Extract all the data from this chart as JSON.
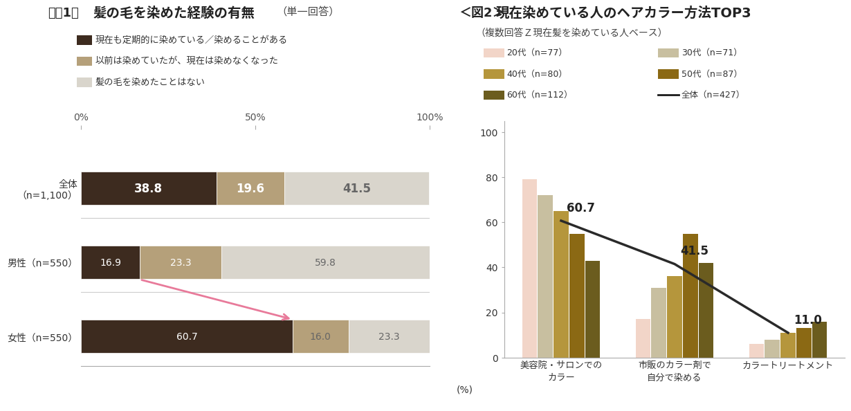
{
  "fig1": {
    "title1": "＜図1＞",
    "title2": "髪の毛を染めた経験の有無",
    "title_sub": "（単一回答）",
    "legend_labels": [
      "現在も定期的に染めている／染めることがある",
      "以前は染めていたが、現在は染めなくなった",
      "髪の毛を染めたことはない"
    ],
    "legend_colors": [
      "#3d2b1f",
      "#b5a07a",
      "#d9d5cc"
    ],
    "categories": [
      "全体\n（n=1,100）",
      "男性（n=550）",
      "女性（n=550）"
    ],
    "values": [
      [
        38.8,
        19.6,
        41.5
      ],
      [
        16.9,
        23.3,
        59.8
      ],
      [
        60.7,
        16.0,
        23.3
      ]
    ],
    "bar_colors": [
      "#3d2b1f",
      "#b5a07a",
      "#d9d5cc"
    ],
    "bar_text_colors": [
      "#ffffff",
      "#ffffff",
      "#555555"
    ],
    "value_colors_row": [
      [
        "#ffffff",
        "#ffffff",
        "#666666"
      ],
      [
        "#ffffff",
        "#ffffff",
        "#666666"
      ],
      [
        "#ffffff",
        "#666666",
        "#666666"
      ]
    ]
  },
  "fig2": {
    "title1": "＜図2＞",
    "title2": "現在染めている人のヘアカラー方法TOP3",
    "title_sub": "（複数回答Ｚ現在髪を染めている人ベース）",
    "categories": [
      "美容院・サロンでの\nカラー",
      "市販のカラー剤で\n自分で染める",
      "カラートリートメント"
    ],
    "legend_labels": [
      "20代（n=77）",
      "30代（n=71）",
      "40代（n=80）",
      "50代（n=87）",
      "60代（n=112）",
      "全体（n=427）"
    ],
    "legend_colors": [
      "#f2d5c8",
      "#c8bfa0",
      "#b5963c",
      "#8b6914",
      "#6b5c1e",
      "#1a1a1a"
    ],
    "bar_data": {
      "20dai": [
        79,
        17,
        6
      ],
      "30dai": [
        72,
        31,
        8
      ],
      "40dai": [
        65,
        36,
        11
      ],
      "50dai": [
        55,
        55,
        13
      ],
      "60dai": [
        43,
        42,
        16
      ]
    },
    "line_data": [
      60.7,
      41.5,
      11.0
    ],
    "line_labels": [
      "60.7",
      "41.5",
      "11.0"
    ],
    "bar_colors": [
      "#f2d5c8",
      "#c8bfa0",
      "#b5963c",
      "#8b6914",
      "#6b5c1e"
    ],
    "line_color": "#2a2a2a",
    "ylabel": "(%)",
    "yticks": [
      0,
      20,
      40,
      60,
      80,
      100
    ]
  }
}
